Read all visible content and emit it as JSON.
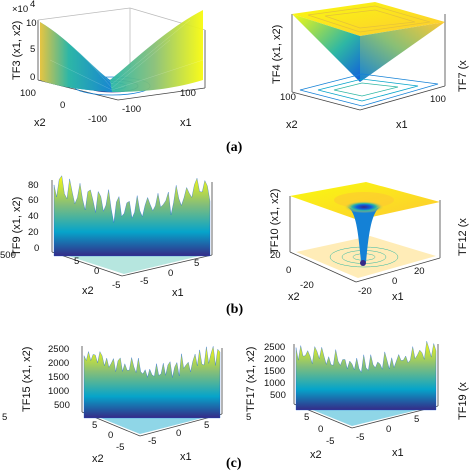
{
  "figure": {
    "captions": [
      "(a)",
      "(b)",
      "(c)"
    ],
    "edge_fragments": [
      "TF7 (x",
      "TF12 (x",
      "TF19 (x",
      "500",
      "5",
      "5"
    ],
    "colormap": [
      "#352a87",
      "#0f5cdd",
      "#1481d6",
      "#06a4ca",
      "#2eb7a4",
      "#87bf77",
      "#d1bb59",
      "#fec832",
      "#f9fb0e"
    ]
  },
  "chart_data": [
    {
      "type": "surface",
      "name": "TF3",
      "zlabel": "TF3 (x1, x2)",
      "xlabel": "x1",
      "ylabel": "x2",
      "x_ticks": [
        "100",
        "-100"
      ],
      "y_ticks": [
        "100",
        "0",
        "-100"
      ],
      "z_ticks": [
        "10",
        "5",
        "0"
      ],
      "z_exponent": "×10^4",
      "xlim": [
        -100,
        100
      ],
      "ylim": [
        -100,
        100
      ],
      "zlim": [
        0,
        100000
      ],
      "shape": "quadratic valley with yellow corners, contour lines on floor"
    },
    {
      "type": "surface",
      "name": "TF4",
      "zlabel": "TF4 (x1, x2)",
      "xlabel": "x1",
      "ylabel": "x2",
      "x_ticks": [
        "100"
      ],
      "y_ticks": [
        "100"
      ],
      "xlim": [
        -100,
        100
      ],
      "ylim": [
        -100,
        100
      ],
      "shape": "inverted pyramid (max-abs), yellow top plane with square contours"
    },
    {
      "type": "surface",
      "name": "TF9",
      "zlabel": "TF9 (x1, x2)",
      "xlabel": "x1",
      "ylabel": "x2",
      "x_ticks": [
        "0",
        "5",
        "-5"
      ],
      "y_ticks": [
        "5",
        "0",
        "-5"
      ],
      "z_ticks": [
        "80",
        "60",
        "40",
        "20",
        "0"
      ],
      "xlim": [
        -5,
        5
      ],
      "ylim": [
        -5,
        5
      ],
      "zlim": [
        0,
        80
      ],
      "shape": "Rastrigin-type multimodal surface"
    },
    {
      "type": "surface",
      "name": "TF10",
      "zlabel": "TF10 (x1, x2)",
      "xlabel": "x1",
      "ylabel": "x2",
      "x_ticks": [
        "20",
        "0",
        "-20"
      ],
      "y_ticks": [
        "20",
        "0",
        "-20"
      ],
      "xlim": [
        -32,
        32
      ],
      "ylim": [
        -32,
        32
      ],
      "shape": "Ackley-type flat plateau with central funnel"
    },
    {
      "type": "surface",
      "name": "TF15",
      "zlabel": "TF15 (x1, x2)",
      "xlabel": "x1",
      "ylabel": "x2",
      "x_ticks": [
        "5",
        "0",
        "-5"
      ],
      "y_ticks": [
        "5",
        "0",
        "-5"
      ],
      "z_ticks": [
        "2500",
        "2000",
        "1500",
        "1000",
        "500"
      ],
      "xlim": [
        -5,
        5
      ],
      "ylim": [
        -5,
        5
      ],
      "zlim": [
        0,
        2500
      ],
      "shape": "rugged hybrid composite surface"
    },
    {
      "type": "surface",
      "name": "TF17",
      "zlabel": "TF17 (x1, x2)",
      "xlabel": "x1",
      "ylabel": "x2",
      "x_ticks": [
        "5",
        "0",
        "-5"
      ],
      "y_ticks": [
        "5",
        "0",
        "-5"
      ],
      "z_ticks": [
        "2500",
        "2000",
        "1500",
        "1000",
        "500"
      ],
      "xlim": [
        -5,
        5
      ],
      "ylim": [
        -5,
        5
      ],
      "zlim": [
        0,
        2500
      ],
      "shape": "rugged hybrid composite surface"
    }
  ]
}
